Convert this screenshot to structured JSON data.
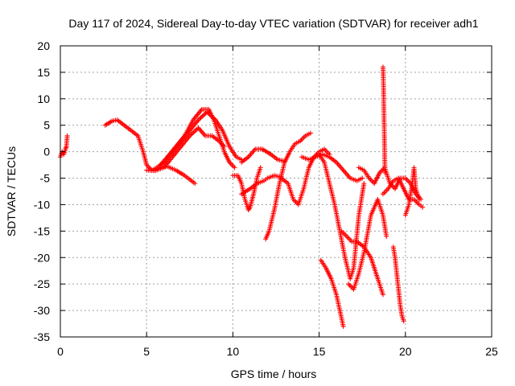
{
  "chart_data": {
    "type": "scatter",
    "title": "Day 117 of 2024, Sidereal Day-to-day VTEC variation (SDTVAR) for receiver adh1",
    "xlabel": "GPS time / hours",
    "ylabel": "SDTVAR / TECUs",
    "xlim": [
      0,
      25
    ],
    "ylim": [
      -35,
      20
    ],
    "xticks": [
      "0",
      "5",
      "10",
      "15",
      "20",
      "25"
    ],
    "yticks": [
      "20",
      "15",
      "10",
      "5",
      "0",
      "-5",
      "-10",
      "-15",
      "-20",
      "-25",
      "-30",
      "-35"
    ],
    "grid": true,
    "marker": "plus",
    "color": "#ff0000",
    "series": [
      {
        "x": [
          0.0,
          0.1,
          0.2,
          0.3,
          0.35,
          0.4
        ],
        "y": [
          -1,
          0,
          -0.5,
          0.5,
          1,
          3
        ]
      },
      {
        "x": [
          2.6,
          3.0,
          3.3,
          3.7,
          4.1,
          4.5,
          4.8,
          5.0,
          5.3,
          5.6,
          6.0
        ],
        "y": [
          5,
          5.8,
          6,
          5,
          4,
          3,
          0,
          -2.5,
          -3.5,
          -3,
          -2
        ]
      },
      {
        "x": [
          5.5,
          5.8,
          6.2,
          6.7,
          7.2,
          7.8
        ],
        "y": [
          -3.5,
          -3,
          -2.8,
          -3.5,
          -4.5,
          -6
        ]
      },
      {
        "x": [
          5.0,
          5.5,
          6.0,
          6.5,
          7.0,
          7.5,
          8.0,
          8.4,
          8.8,
          9.2,
          9.5
        ],
        "y": [
          -3.5,
          -3.6,
          -3,
          -1,
          1,
          3,
          4.5,
          3,
          3,
          2,
          1
        ]
      },
      {
        "x": [
          5.8,
          6.2,
          6.7,
          7.2,
          7.7,
          8.2,
          8.6,
          8.9,
          9.2,
          9.5,
          9.8,
          10.1
        ],
        "y": [
          -2.5,
          -1,
          1,
          3,
          6,
          8,
          8,
          6,
          3,
          0,
          -2,
          -3
        ]
      },
      {
        "x": [
          6.0,
          6.5,
          7.0,
          7.5,
          8.0,
          8.5,
          9.0,
          9.4,
          9.8,
          10.2,
          10.5
        ],
        "y": [
          -2,
          0,
          2,
          4,
          6,
          7.5,
          6,
          4,
          1,
          -1,
          -1.5
        ]
      },
      {
        "x": [
          10.0,
          10.3,
          10.5,
          10.7,
          10.9,
          11.0,
          11.2,
          11.4,
          11.6
        ],
        "y": [
          -4.5,
          -4.5,
          -6,
          -9,
          -11,
          -10.5,
          -8,
          -5,
          -3
        ]
      },
      {
        "x": [
          10.5,
          10.9,
          11.3,
          11.7,
          12.2,
          12.6,
          13.0
        ],
        "y": [
          -2,
          -1,
          0.5,
          0.5,
          -0.5,
          -1.5,
          -1.8
        ]
      },
      {
        "x": [
          10.5,
          11.0,
          11.4,
          11.8,
          12.0,
          12.4,
          12.8
        ],
        "y": [
          -8,
          -7,
          -6,
          -5.5,
          -5,
          -4.5,
          -4.8
        ]
      },
      {
        "x": [
          11.9,
          12.1,
          12.4,
          12.7,
          13.0,
          13.3,
          13.6,
          13.9,
          14.2,
          14.5
        ],
        "y": [
          -16.5,
          -15,
          -11,
          -6,
          -2,
          0,
          1.5,
          2,
          3,
          3.5
        ]
      },
      {
        "x": [
          12.8,
          13.2,
          13.5,
          13.8,
          14.1,
          14.4,
          14.7,
          15.0,
          15.3,
          15.6
        ],
        "y": [
          -5,
          -6,
          -9,
          -10,
          -7,
          -3,
          -1,
          0,
          0.5,
          -0.5
        ]
      },
      {
        "x": [
          14.0,
          14.4,
          14.8,
          15.2,
          15.6,
          16.0,
          16.4,
          16.8,
          17.2,
          17.5
        ],
        "y": [
          -1,
          -1.5,
          -1,
          -0.5,
          -1,
          -2,
          -3.5,
          -5,
          -5.5,
          -5
        ]
      },
      {
        "x": [
          15.0,
          15.3,
          15.6,
          15.9,
          16.2,
          16.5,
          16.8,
          17.0,
          17.3,
          17.6
        ],
        "y": [
          -0.5,
          -2,
          -6,
          -10,
          -15,
          -20,
          -24,
          -22,
          -12,
          -6
        ]
      },
      {
        "x": [
          15.1,
          15.4,
          15.7,
          16.0,
          16.2,
          16.4
        ],
        "y": [
          -20.5,
          -22,
          -24,
          -27,
          -30,
          -33
        ]
      },
      {
        "x": [
          16.3,
          16.6,
          16.9,
          17.2,
          17.6,
          18.0,
          18.4,
          18.7
        ],
        "y": [
          -15,
          -16,
          -17,
          -17,
          -18,
          -20,
          -24,
          -27
        ]
      },
      {
        "x": [
          16.7,
          17.0,
          17.3,
          17.6,
          18.0,
          18.4,
          18.7,
          18.9
        ],
        "y": [
          -25,
          -26,
          -23,
          -19,
          -12,
          -9,
          -12,
          -16
        ]
      },
      {
        "x": [
          17.3,
          17.6,
          17.9,
          18.2,
          18.5,
          18.8,
          19.1,
          19.4,
          19.7,
          20.0,
          20.3,
          20.6,
          20.9
        ],
        "y": [
          -3,
          -3.5,
          -5,
          -6,
          -4,
          -3,
          -6,
          -7,
          -5,
          -5,
          -6,
          -8,
          -9
        ]
      },
      {
        "x": [
          18.7,
          18.72,
          18.74,
          18.76,
          18.78,
          18.8,
          18.82
        ],
        "y": [
          16,
          14,
          11,
          7,
          3,
          -1,
          -4
        ]
      },
      {
        "x": [
          18.7,
          19.0,
          19.3,
          19.6,
          19.9,
          20.2,
          20.5,
          20.8,
          21.0
        ],
        "y": [
          -8,
          -7,
          -5.5,
          -5,
          -7,
          -9,
          -9,
          -10,
          -10.5
        ]
      },
      {
        "x": [
          19.3,
          19.4,
          19.5,
          19.6,
          19.7,
          19.8,
          19.9
        ],
        "y": [
          -18,
          -20,
          -23,
          -26,
          -29,
          -31,
          -32
        ]
      },
      {
        "x": [
          20.0,
          20.2,
          20.4,
          20.5,
          20.6,
          20.8
        ],
        "y": [
          -12,
          -10,
          -6,
          -3,
          -7,
          -9
        ]
      }
    ]
  }
}
